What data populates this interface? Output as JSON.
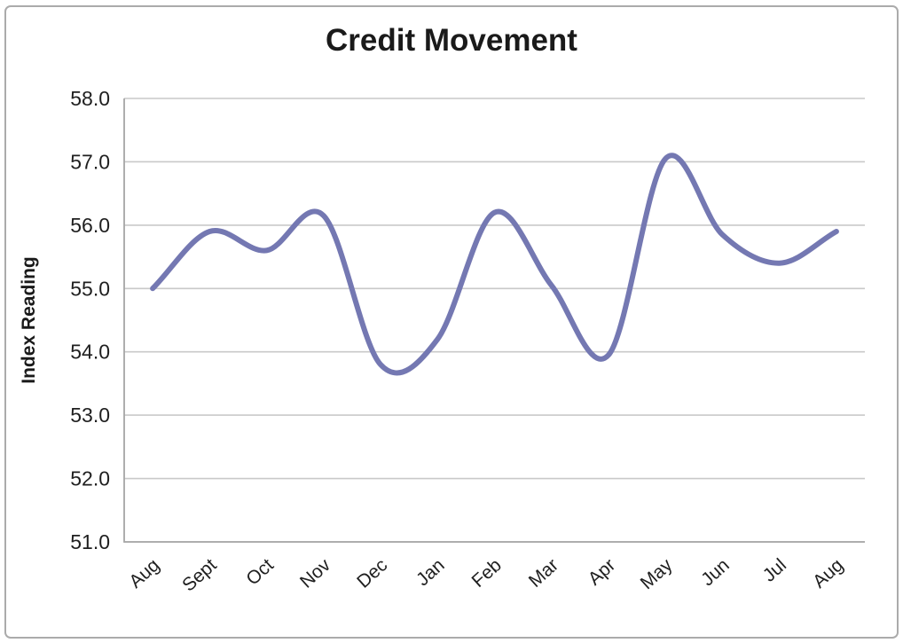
{
  "chart_data": {
    "type": "line",
    "title": "Credit Movement",
    "xlabel": "",
    "ylabel": "Index Reading",
    "categories": [
      "Aug",
      "Sept",
      "Oct",
      "Nov",
      "Dec",
      "Jan",
      "Feb",
      "Mar",
      "Apr",
      "May",
      "Jun",
      "Jul",
      "Aug"
    ],
    "series": [
      {
        "name": "Index Reading",
        "values": [
          55.0,
          55.9,
          55.6,
          56.15,
          53.8,
          54.2,
          56.2,
          55.05,
          53.95,
          57.05,
          55.85,
          55.4,
          55.9
        ]
      }
    ],
    "ylim": [
      51.0,
      58.0
    ],
    "ytick_step": 1.0,
    "ytick_labels": [
      "51.0",
      "52.0",
      "53.0",
      "54.0",
      "55.0",
      "56.0",
      "57.0",
      "58.0"
    ],
    "grid": true,
    "smooth_line": true,
    "markers": false,
    "legend_position": "none",
    "colors": {
      "line": "#7478B2",
      "gridline": "#c9c9c9",
      "axis": "#a6a6a6",
      "text": "#1f1f1f",
      "title_text": "#1a1a1a",
      "frame_border": "#ababab",
      "background": "#ffffff"
    }
  }
}
